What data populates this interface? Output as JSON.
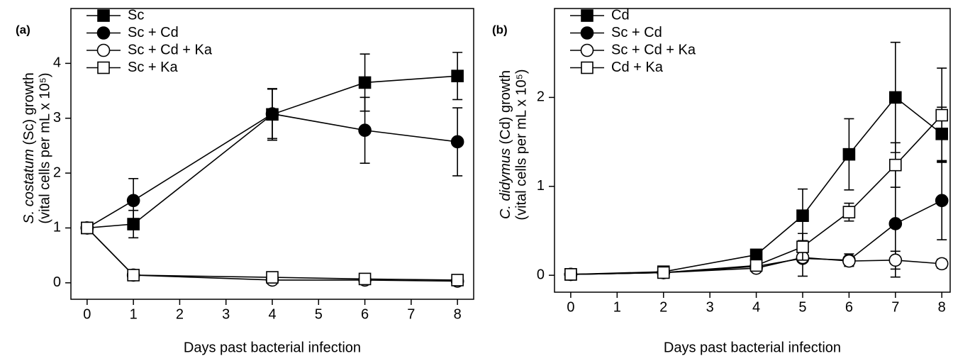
{
  "chart_data": [
    {
      "type": "line",
      "panel_label": "(a)",
      "ylabel_italic": "S. costatum",
      "ylabel_rest": "(Sc) growth",
      "ylabel_line2": "(vital cells per mL x 10⁵)",
      "xlabel": "Days past bacterial infection",
      "x": [
        0,
        1,
        4,
        6,
        8
      ],
      "xlim": [
        -0.35,
        8.35
      ],
      "xticks": [
        0,
        1,
        2,
        3,
        4,
        5,
        6,
        7,
        8
      ],
      "ylim": [
        -0.3,
        5.0
      ],
      "yticks": [
        0,
        1,
        2,
        3,
        4
      ],
      "series": [
        {
          "name": "Sc",
          "color": "#000000",
          "marker": "square",
          "fill": "filled",
          "values": [
            1,
            1.07,
            3.07,
            3.65,
            3.77
          ],
          "errors": [
            0.05,
            0.25,
            0.47,
            0.52,
            0.43
          ]
        },
        {
          "name": "Sc + Cd",
          "color": "#000000",
          "marker": "circle",
          "fill": "filled",
          "values": [
            1,
            1.5,
            3.08,
            2.78,
            2.57
          ],
          "errors": [
            0.05,
            0.4,
            0.45,
            0.6,
            0.62
          ]
        },
        {
          "name": "Sc + Cd + Ka",
          "color": "#000000",
          "marker": "circle",
          "fill": "open",
          "values": [
            1,
            0.14,
            0.05,
            0.05,
            0.03
          ],
          "errors": [
            0.05,
            0.05,
            0.04,
            0.04,
            0.04
          ]
        },
        {
          "name": "Sc + Ka",
          "color": "#000000",
          "marker": "square",
          "fill": "open",
          "values": [
            1,
            0.14,
            0.1,
            0.07,
            0.05
          ],
          "errors": [
            0.05,
            0.05,
            0.04,
            0.04,
            0.04
          ]
        }
      ]
    },
    {
      "type": "line",
      "panel_label": "(b)",
      "ylabel_italic": "C. didymus",
      "ylabel_rest": "(Cd) growth",
      "ylabel_line2": "(vital cells per mL x 10⁵)",
      "xlabel": "Days past bacterial infection",
      "x": [
        0,
        2,
        4,
        5,
        6,
        7,
        8
      ],
      "xlim": [
        -0.35,
        8.18
      ],
      "xticks": [
        0,
        1,
        2,
        3,
        4,
        5,
        6,
        7,
        8
      ],
      "ylim": [
        -0.19,
        3.0
      ],
      "yticks": [
        0,
        1,
        2
      ],
      "series": [
        {
          "name": "Cd",
          "color": "#000000",
          "marker": "square",
          "fill": "filled",
          "values": [
            0.01,
            0.04,
            0.23,
            0.67,
            1.36,
            2.0,
            1.59
          ],
          "errors": [
            0.03,
            0.03,
            0.05,
            0.3,
            0.4,
            0.62,
            0.3
          ]
        },
        {
          "name": "Sc + Cd",
          "color": "#000000",
          "marker": "circle",
          "fill": "filled",
          "values": [
            0.01,
            0.03,
            0.1,
            0.19,
            0.17,
            0.58,
            0.84
          ],
          "errors": [
            0.03,
            0.03,
            0.05,
            0.2,
            0.07,
            0.6,
            0.44
          ]
        },
        {
          "name": "Sc + Cd + Ka",
          "color": "#000000",
          "marker": "circle",
          "fill": "open",
          "values": [
            0.01,
            0.03,
            0.08,
            0.2,
            0.16,
            0.17,
            0.13
          ],
          "errors": [
            0.02,
            0.02,
            0.04,
            0.04,
            0.05,
            0.1,
            0.05
          ]
        },
        {
          "name": "Cd + Ka",
          "color": "#000000",
          "marker": "square",
          "fill": "open",
          "values": [
            0.01,
            0.03,
            0.11,
            0.32,
            0.71,
            1.24,
            1.8
          ],
          "errors": [
            0.02,
            0.02,
            0.04,
            0.15,
            0.1,
            0.25,
            0.53
          ]
        }
      ]
    }
  ]
}
